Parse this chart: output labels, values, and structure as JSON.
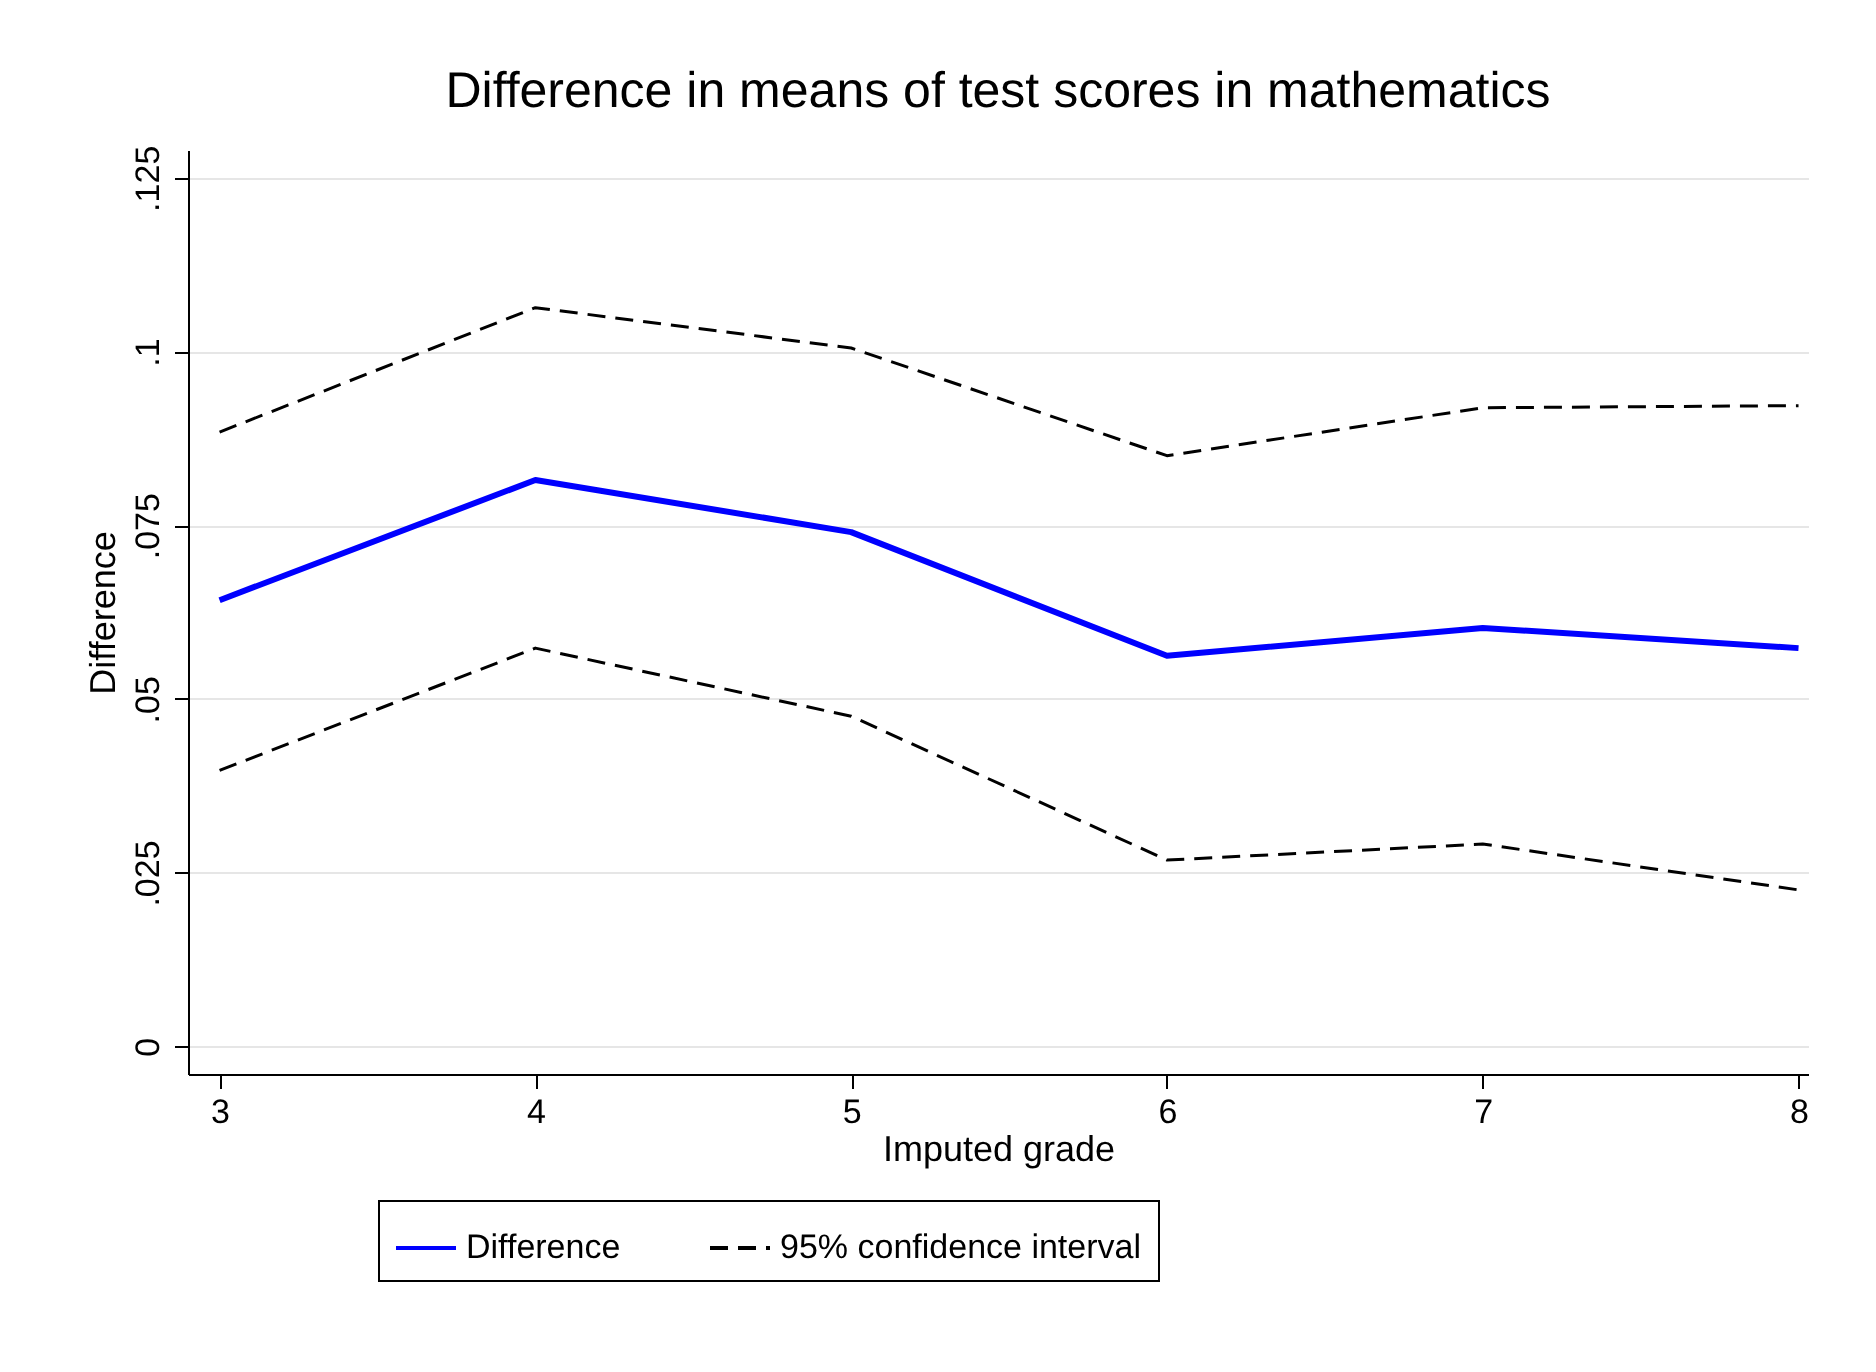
{
  "chart_data": {
    "type": "line",
    "title": "Difference in means of test scores in mathematics",
    "xlabel": "Imputed grade",
    "ylabel": "Difference",
    "x": [
      3,
      4,
      5,
      6,
      7,
      8
    ],
    "series": [
      {
        "name": "Difference",
        "color": "#0000ff",
        "line_style": "solid",
        "values": [
          0.0642,
          0.0815,
          0.074,
          0.0562,
          0.0602,
          0.0573
        ]
      },
      {
        "name": "95% confidence interval",
        "color": "#000000",
        "line_style": "dashed",
        "values": [
          0.0884,
          0.1063,
          0.1005,
          0.085,
          0.0919,
          0.0922
        ]
      },
      {
        "color": "#000000",
        "line_style": "dashed",
        "values": [
          0.0397,
          0.0573,
          0.0475,
          0.0268,
          0.0291,
          0.0225
        ]
      }
    ],
    "xlim": [
      2.9,
      8.03
    ],
    "ylim": [
      -0.004,
      0.129
    ],
    "xticks": [
      3,
      4,
      5,
      6,
      7,
      8
    ],
    "yticks": [
      {
        "value": 0,
        "label": "0"
      },
      {
        "value": 0.025,
        "label": ".025"
      },
      {
        "value": 0.05,
        "label": ".05"
      },
      {
        "value": 0.075,
        "label": ".075"
      },
      {
        "value": 0.1,
        "label": ".1"
      },
      {
        "value": 0.125,
        "label": ".125"
      }
    ],
    "grid": "y",
    "legend": "bottom",
    "marker": "none"
  }
}
